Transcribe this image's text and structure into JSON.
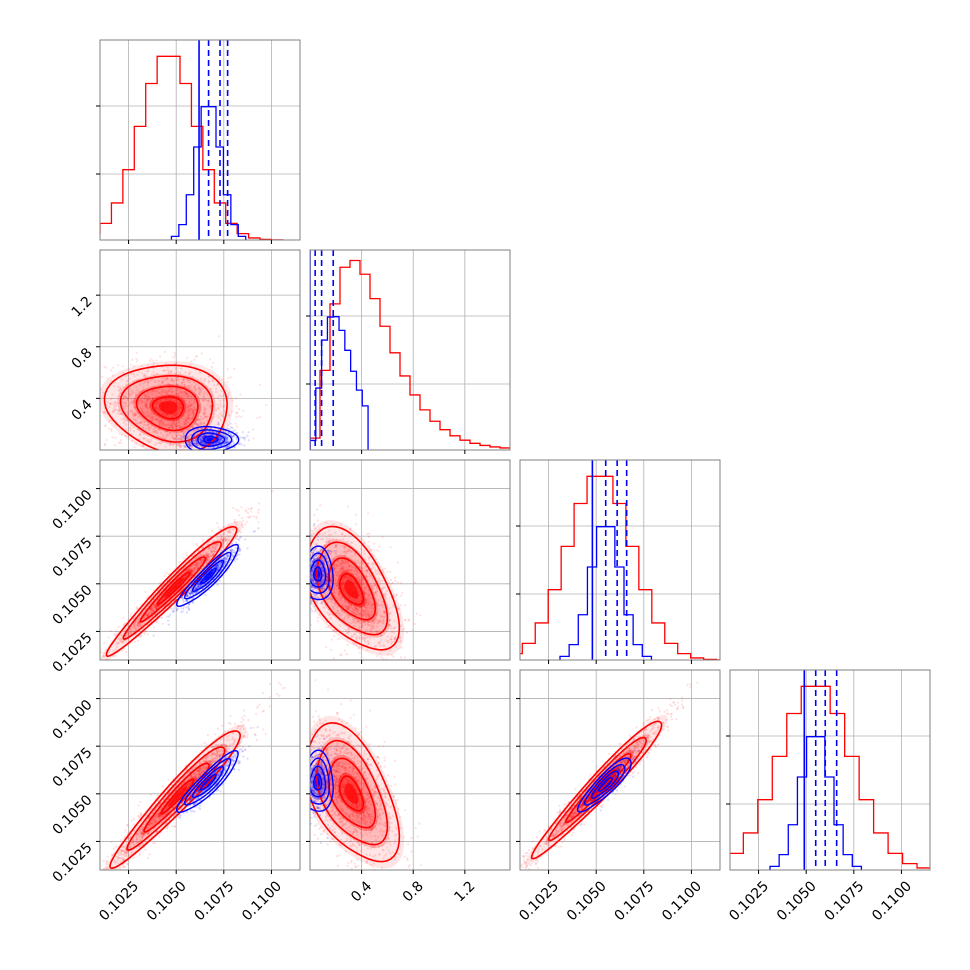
{
  "colors": {
    "series_a": "#ff0000",
    "series_b": "#0000ff",
    "grid": "#b0b0b0",
    "axis": "#808080"
  },
  "chart_data": {
    "type": "corner",
    "grid": true,
    "legend": "none",
    "series": [
      {
        "name": "",
        "color": "#ff0000"
      },
      {
        "name": "",
        "color": "#0000ff"
      }
    ],
    "ranges": [
      [
        0.101,
        0.1115
      ],
      [
        0.0,
        1.55
      ],
      [
        0.101,
        0.1115
      ],
      [
        0.101,
        0.1115
      ]
    ],
    "ticks": [
      [
        "0.1025",
        "0.1050",
        "0.1075",
        "0.1100"
      ],
      [
        "0.4",
        "0.8",
        "1.2"
      ],
      [
        "0.1025",
        "0.1050",
        "0.1075",
        "0.1100"
      ],
      [
        "0.1025",
        "0.1050",
        "0.1075",
        "0.1100"
      ]
    ],
    "tick_values": [
      [
        0.1025,
        0.105,
        0.1075,
        0.11
      ],
      [
        0.4,
        0.8,
        1.2
      ],
      [
        0.1025,
        0.105,
        0.1075,
        0.11
      ],
      [
        0.1025,
        0.105,
        0.1075,
        0.11
      ]
    ],
    "marginals": [
      {
        "a": {
          "mean": 0.1046,
          "sd": 0.0015,
          "bins": 20
        },
        "b": {
          "mean": 0.1067,
          "sd": 0.00065,
          "bins": 10,
          "quantiles": [
            0.1062,
            0.1067,
            0.1073,
            0.1077
          ]
        }
      },
      {
        "a": {
          "mode": 0.33,
          "tail": 1.55,
          "bins": 20
        },
        "b": {
          "mode": 0.18,
          "tail": 0.45,
          "bins": 10,
          "quantiles": [
            0.0,
            0.04,
            0.09,
            0.18
          ]
        }
      },
      {
        "a": {
          "mean": 0.1052,
          "sd": 0.0017,
          "bins": 20
        },
        "b": {
          "mean": 0.1055,
          "sd": 0.0008,
          "bins": 10,
          "quantiles": [
            0.1048,
            0.1055,
            0.1061,
            0.1066
          ]
        }
      },
      {
        "a": {
          "mean": 0.1055,
          "sd": 0.0019,
          "bins": 20
        },
        "b": {
          "mean": 0.1055,
          "sd": 0.0008,
          "bins": 10,
          "quantiles": [
            0.1049,
            0.1055,
            0.106,
            0.1066
          ]
        }
      }
    ],
    "pairs": [
      {
        "i": 1,
        "j": 0,
        "a": {
          "cx": 0.1046,
          "cy": 0.33,
          "sx": 0.0016,
          "sy": 0.17,
          "rho": -0.1
        },
        "b": {
          "cx": 0.1068,
          "cy": 0.08,
          "sx": 0.0007,
          "sy": 0.05,
          "rho": 0.0
        }
      },
      {
        "i": 2,
        "j": 0,
        "a": {
          "cx": 0.1049,
          "cy": 0.1048,
          "sx": 0.0017,
          "sy": 0.0017,
          "rho": 0.97
        },
        "b": {
          "cx": 0.1067,
          "cy": 0.1054,
          "sx": 0.0008,
          "sy": 0.0008,
          "rho": 0.92
        }
      },
      {
        "i": 2,
        "j": 1,
        "a": {
          "cx": 0.32,
          "cy": 0.1047,
          "sx": 0.18,
          "sy": 0.0016,
          "rho": -0.5
        },
        "b": {
          "cx": 0.06,
          "cy": 0.1055,
          "sx": 0.06,
          "sy": 0.0007,
          "rho": 0.0
        }
      },
      {
        "i": 3,
        "j": 0,
        "a": {
          "cx": 0.1051,
          "cy": 0.1049,
          "sx": 0.0017,
          "sy": 0.0018,
          "rho": 0.96
        },
        "b": {
          "cx": 0.1067,
          "cy": 0.1056,
          "sx": 0.0008,
          "sy": 0.0008,
          "rho": 0.9
        }
      },
      {
        "i": 3,
        "j": 1,
        "a": {
          "cx": 0.32,
          "cy": 0.105,
          "sx": 0.18,
          "sy": 0.0018,
          "rho": -0.5
        },
        "b": {
          "cx": 0.06,
          "cy": 0.1056,
          "sx": 0.06,
          "sy": 0.0008,
          "rho": 0.0
        }
      },
      {
        "i": 3,
        "j": 2,
        "a": {
          "cx": 0.1052,
          "cy": 0.1054,
          "sx": 0.0017,
          "sy": 0.0018,
          "rho": 0.97
        },
        "b": {
          "cx": 0.1055,
          "cy": 0.1055,
          "sx": 0.0007,
          "sy": 0.0007,
          "rho": 0.88
        }
      }
    ]
  }
}
